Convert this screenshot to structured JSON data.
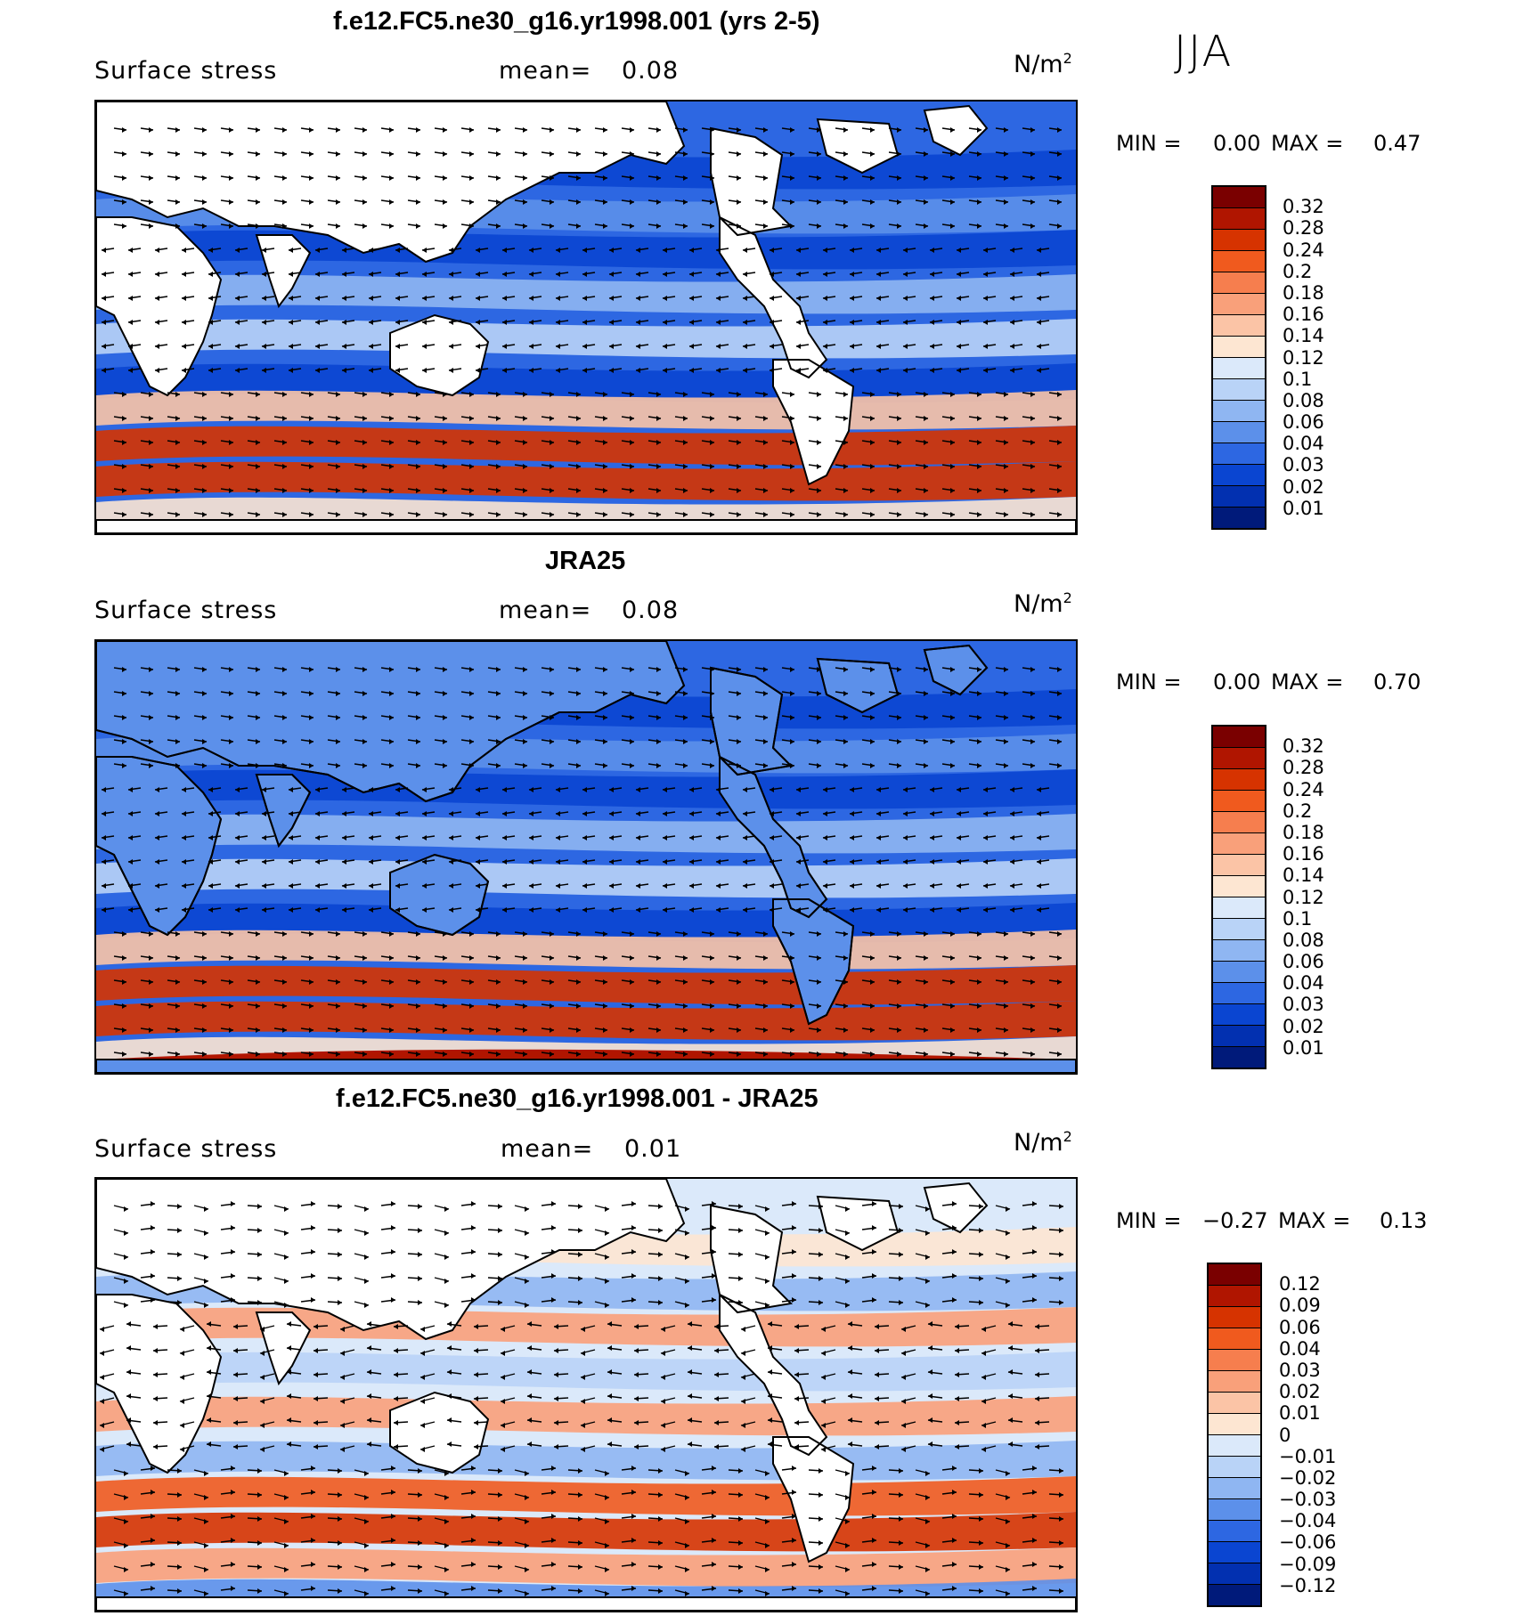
{
  "season": "JJA",
  "panels": [
    {
      "title": "f.e12.FC5.ne30_g16.yr1998.001 (yrs 2-5)",
      "variable": "Surface stress",
      "mean_label": "mean=",
      "mean_value": "0.08",
      "units": "N/m",
      "units_sup": "2",
      "min_label": "MIN =",
      "min_value": "0.00",
      "max_label": "MAX =",
      "max_value": "0.47",
      "colorbar_labels": [
        "0.32",
        "0.28",
        "0.24",
        "0.2",
        "0.18",
        "0.16",
        "0.14",
        "0.12",
        "0.1",
        "0.08",
        "0.06",
        "0.04",
        "0.03",
        "0.02",
        "0.01"
      ],
      "colorbar_colors": [
        "#7a0000",
        "#b01500",
        "#d63300",
        "#f05a1e",
        "#f67e4e",
        "#f9a07a",
        "#fbc4a6",
        "#fde6d2",
        "#dbe9fa",
        "#b9d3f7",
        "#8fb6f2",
        "#5c90ea",
        "#2d67e2",
        "#0a45d1",
        "#0230b0",
        "#001a7a"
      ],
      "type": "abs"
    },
    {
      "title": "JRA25",
      "variable": "Surface stress",
      "mean_label": "mean=",
      "mean_value": "0.08",
      "units": "N/m",
      "units_sup": "2",
      "min_label": "MIN =",
      "min_value": "0.00",
      "max_label": "MAX =",
      "max_value": "0.70",
      "colorbar_labels": [
        "0.32",
        "0.28",
        "0.24",
        "0.2",
        "0.18",
        "0.16",
        "0.14",
        "0.12",
        "0.1",
        "0.08",
        "0.06",
        "0.04",
        "0.03",
        "0.02",
        "0.01"
      ],
      "colorbar_colors": [
        "#7a0000",
        "#b01500",
        "#d63300",
        "#f05a1e",
        "#f67e4e",
        "#f9a07a",
        "#fbc4a6",
        "#fde6d2",
        "#dbe9fa",
        "#b9d3f7",
        "#8fb6f2",
        "#5c90ea",
        "#2d67e2",
        "#0a45d1",
        "#0230b0",
        "#001a7a"
      ],
      "type": "abs"
    },
    {
      "title": "f.e12.FC5.ne30_g16.yr1998.001 - JRA25",
      "variable": "Surface stress",
      "mean_label": "mean=",
      "mean_value": "0.01",
      "units": "N/m",
      "units_sup": "2",
      "min_label": "MIN =",
      "min_value": "−0.27",
      "max_label": "MAX =",
      "max_value": "0.13",
      "colorbar_labels": [
        "0.12",
        "0.09",
        "0.06",
        "0.04",
        "0.03",
        "0.02",
        "0.01",
        "0",
        "−0.01",
        "−0.02",
        "−0.03",
        "−0.04",
        "−0.06",
        "−0.09",
        "−0.12"
      ],
      "colorbar_colors": [
        "#7a0000",
        "#b01500",
        "#d63300",
        "#f05a1e",
        "#f67e4e",
        "#f9a07a",
        "#fbc4a6",
        "#fde6d2",
        "#dbe9fa",
        "#b9d3f7",
        "#8fb6f2",
        "#5c90ea",
        "#2d67e2",
        "#0a45d1",
        "#0230b0",
        "#001a7a"
      ],
      "type": "diff"
    }
  ]
}
